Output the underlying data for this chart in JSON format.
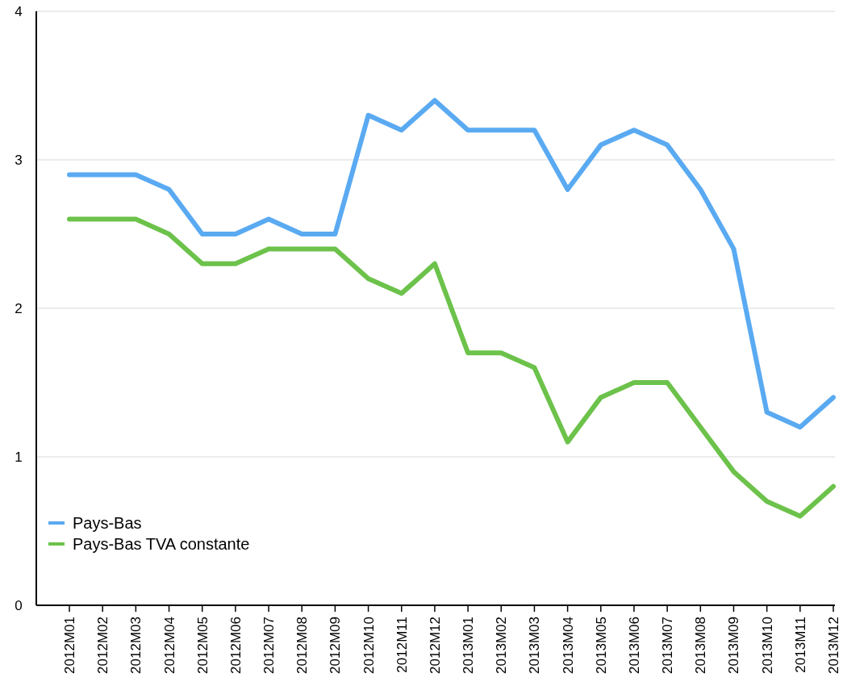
{
  "chart_data": {
    "type": "line",
    "categories": [
      "2012M01",
      "2012M02",
      "2012M03",
      "2012M04",
      "2012M05",
      "2012M06",
      "2012M07",
      "2012M08",
      "2012M09",
      "2012M10",
      "2012M11",
      "2012M12",
      "2013M01",
      "2013M02",
      "2013M03",
      "2013M04",
      "2013M05",
      "2013M06",
      "2013M07",
      "2013M08",
      "2013M09",
      "2013M10",
      "2013M11",
      "2013M12"
    ],
    "series": [
      {
        "name": "Pays-Bas",
        "color": "#5aaaf2",
        "values": [
          2.9,
          2.9,
          2.9,
          2.8,
          2.5,
          2.5,
          2.6,
          2.5,
          2.5,
          3.3,
          3.2,
          3.4,
          3.2,
          3.2,
          3.2,
          2.8,
          3.1,
          3.2,
          3.1,
          2.8,
          2.4,
          1.3,
          1.2,
          1.4
        ]
      },
      {
        "name": "Pays-Bas TVA constante",
        "color": "#6cc24a",
        "values": [
          2.6,
          2.6,
          2.6,
          2.5,
          2.3,
          2.3,
          2.4,
          2.4,
          2.4,
          2.2,
          2.1,
          2.3,
          1.7,
          1.7,
          1.6,
          1.1,
          1.4,
          1.5,
          1.5,
          1.2,
          0.9,
          0.7,
          0.6,
          0.8
        ]
      }
    ],
    "ylim": [
      0,
      4
    ],
    "yticks": [
      0,
      1,
      2,
      3,
      4
    ],
    "grid": "y",
    "legend": "bottom left",
    "marker": "none",
    "line_style": "solid"
  }
}
